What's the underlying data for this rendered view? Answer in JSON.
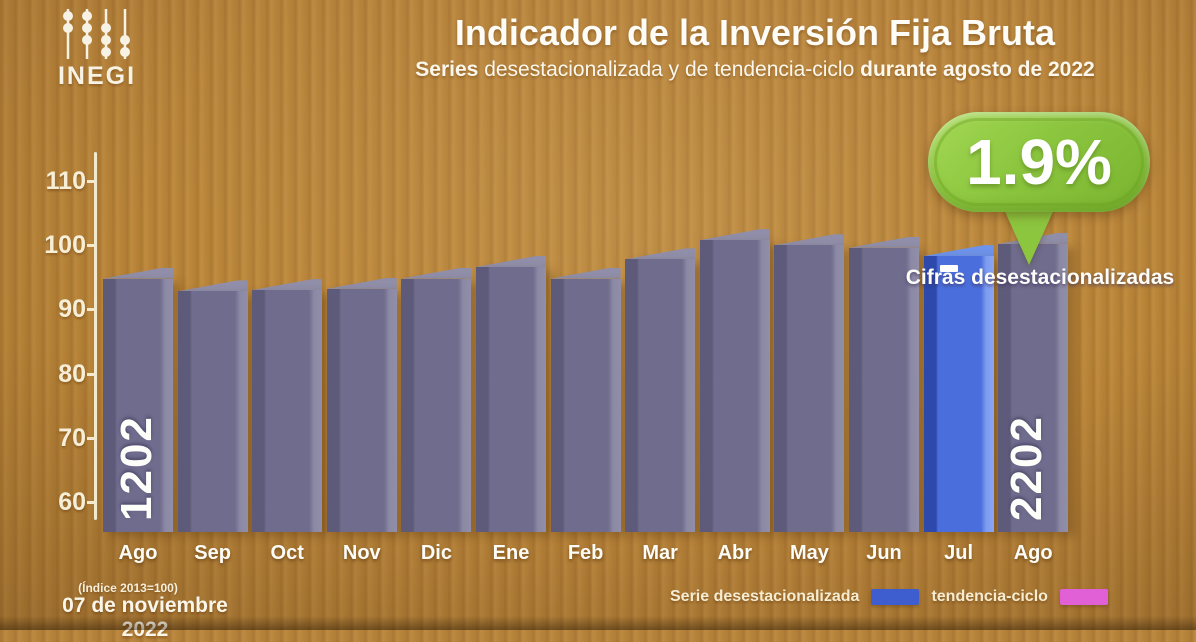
{
  "branding": {
    "logo_text": "INEGI"
  },
  "header": {
    "title": "Indicador de la Inversión Fija Bruta",
    "subtitle_bold1": "Series",
    "subtitle_regular": "desestacionalizada y de tendencia-ciclo",
    "subtitle_bold2": "durante agosto de 2022"
  },
  "callout": {
    "value": "1.9%",
    "caption": "Cifras desestacionalizadas",
    "color": "#8cc63f"
  },
  "chart_data": {
    "type": "bar",
    "title": "Indicador de la Inversión Fija Bruta",
    "categories": [
      "Ago",
      "Sep",
      "Oct",
      "Nov",
      "Dic",
      "Ene",
      "Feb",
      "Mar",
      "Abr",
      "May",
      "Jun",
      "Jul",
      "Ago"
    ],
    "values": [
      94.8,
      92.8,
      93.0,
      93.2,
      94.8,
      96.6,
      94.8,
      97.8,
      100.8,
      100.0,
      99.6,
      98.3,
      100.2
    ],
    "highlight_index": 11,
    "highlight_note": "Cifras desestacionalizadas",
    "annotation_value": "1.9%",
    "year_start_label": "2021",
    "year_end_label": "2022",
    "xlabel": "",
    "ylabel": "",
    "ylim": [
      60,
      110
    ],
    "yticks": [
      110,
      100,
      90,
      80,
      70,
      60
    ],
    "grid": false,
    "legend_position": "bottom-right",
    "bar_color": "#6f6c8d",
    "highlight_color": "#4a6fdd",
    "index_note": "(Índice 2013=100)"
  },
  "footer": {
    "index_note": "(Índice 2013=100)",
    "date": "07 de noviembre 2022",
    "legend": [
      {
        "label": "Serie desestacionalizada",
        "color": "#3e5ecf"
      },
      {
        "label": "tendencia-ciclo",
        "color": "#e160d5"
      }
    ]
  }
}
